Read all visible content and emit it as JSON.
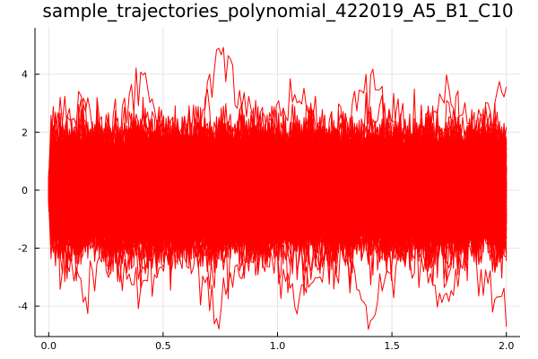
{
  "chart_data": {
    "type": "line",
    "title": "sample_trajectories_polynomial_422019_A5_B1_C10",
    "xlabel": "",
    "ylabel": "",
    "xlim": [
      -0.06,
      2.06
    ],
    "ylim": [
      -5.05,
      5.6
    ],
    "x_ticks": [
      0.0,
      0.5,
      1.0,
      1.5,
      2.0
    ],
    "x_tick_labels": [
      "0.0",
      "0.5",
      "1.0",
      "1.5",
      "2.0"
    ],
    "y_ticks": [
      -4,
      -2,
      0,
      2,
      4
    ],
    "y_tick_labels": [
      "-4",
      "-2",
      "0",
      "2",
      "4"
    ],
    "grid": true,
    "legend": "none",
    "series_color": "#ff0000",
    "series_description": "many sample trajectories starting near 0 at t=0 and fluctuating roughly between -3 and 3 up to t=2",
    "x_range": [
      0.0,
      2.0
    ],
    "n_steps": 200,
    "series": [
      {
        "name": "trajectory",
        "values": [
          0.2,
          1.5,
          0.9,
          -0.4,
          0.8,
          2.1,
          1.2,
          -0.6,
          0.3,
          1.9,
          0.5,
          -1.2,
          0.4,
          1.6,
          2.4,
          0.7,
          -0.5,
          1.1,
          0.2,
          -1.4,
          0.6,
          1.8,
          1.0,
          -0.3,
          0.9
        ]
      },
      {
        "name": "trajectory",
        "values": [
          -0.3,
          -1.6,
          -0.8,
          0.5,
          -1.9,
          -2.6,
          -1.1,
          0.2,
          -0.7,
          -2.2,
          -1.5,
          0.4,
          -0.9,
          -2.0,
          -3.1,
          -1.3,
          0.1,
          -0.8,
          -1.7,
          0.6,
          -0.4,
          -2.3,
          -1.2,
          -0.1,
          -0.6
        ]
      },
      {
        "name": "trajectory",
        "values": [
          0.0,
          2.3,
          3.1,
          1.4,
          2.7,
          3.8,
          2.2,
          1.0,
          2.9,
          4.6,
          3.0,
          1.7,
          2.5,
          3.4,
          2.1,
          1.2,
          2.8,
          3.9,
          2.4,
          1.1,
          2.6,
          3.3,
          1.9,
          2.7,
          3.5
        ]
      },
      {
        "name": "trajectory",
        "values": [
          0.1,
          -2.4,
          -3.3,
          -1.8,
          -2.9,
          -3.6,
          -2.0,
          -1.2,
          -3.0,
          -4.2,
          -2.7,
          -1.5,
          -2.6,
          -3.9,
          -2.3,
          -1.4,
          -3.1,
          -4.6,
          -2.5,
          -1.6,
          -2.8,
          -3.7,
          -2.2,
          -3.4,
          -4.1
        ]
      },
      {
        "name": "trajectory",
        "values": [
          0.3,
          0.9,
          -0.2,
          1.3,
          -0.7,
          0.4,
          1.7,
          -0.9,
          0.2,
          1.1,
          -1.3,
          0.8,
          2.0,
          -0.4,
          0.6,
          1.4,
          -1.0,
          0.3,
          1.2,
          -0.8,
          0.7,
          1.6,
          -0.5,
          0.1,
          0.8
        ]
      }
    ]
  }
}
